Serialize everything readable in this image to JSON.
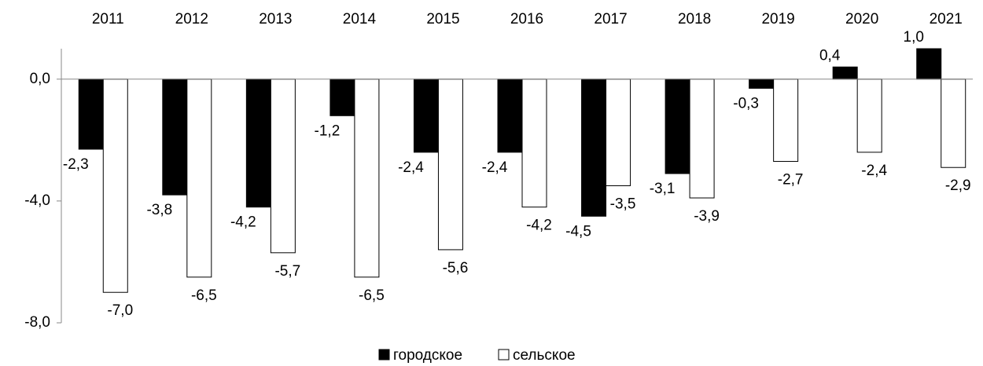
{
  "chart_data": {
    "type": "bar",
    "categories": [
      "2011",
      "2012",
      "2013",
      "2014",
      "2015",
      "2016",
      "2017",
      "2018",
      "2019",
      "2020",
      "2021"
    ],
    "series": [
      {
        "name": "городское",
        "color": "#000000",
        "values": [
          -2.3,
          -3.8,
          -4.2,
          -1.2,
          -2.4,
          -2.4,
          -4.5,
          -3.1,
          -0.3,
          0.4,
          1.0
        ],
        "value_labels": [
          "-2,3",
          "-3,8",
          "-4,2",
          "-1,2",
          "-2,4",
          "-2,4",
          "-4,5",
          "-3,1",
          "-0,3",
          "0,4",
          "1,0"
        ]
      },
      {
        "name": "сельское",
        "color": "#ffffff",
        "values": [
          -7.0,
          -6.5,
          -5.7,
          -6.5,
          -5.6,
          -4.2,
          -3.5,
          -3.9,
          -2.7,
          -2.4,
          -2.9
        ],
        "value_labels": [
          "-7,0",
          "-6,5",
          "-5,7",
          "-6,5",
          "-5,6",
          "-4,2",
          "-3,5",
          "-3,9",
          "-2,7",
          "-2,4",
          "-2,9"
        ]
      }
    ],
    "ylim": [
      -8,
      1
    ],
    "yticks": [
      {
        "value": -8,
        "label": "-8,0"
      },
      {
        "value": -4,
        "label": "-4,0"
      },
      {
        "value": 0,
        "label": "0,0"
      }
    ],
    "grid": false,
    "legend": "bottom"
  }
}
